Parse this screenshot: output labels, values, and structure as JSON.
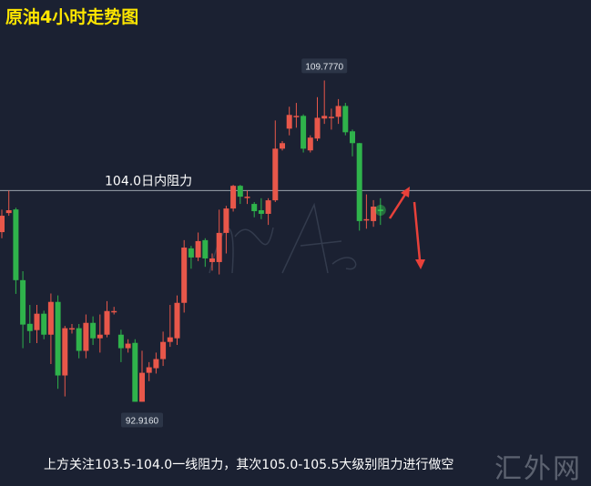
{
  "title": "原油4小时走势图",
  "footnote": "上方关注103.5-104.0一线阻力，其次105.0-105.5大级别阻力进行做空",
  "watermark": "汇外网",
  "colors": {
    "background": "#1b2132",
    "up": "#e8574a",
    "down": "#2fb34b",
    "title": "#ffe600",
    "level_line": "#9aa3ad",
    "arrow": "#e8413a"
  },
  "chart_data": {
    "type": "candlestick",
    "title": "原油4小时走势图",
    "ylim": [
      88.5,
      114.0
    ],
    "grid": false,
    "annotations": {
      "high_label": {
        "text": "109.7770",
        "value": 109.777,
        "candle": 46
      },
      "low_label": {
        "text": "92.9160",
        "value": 92.916,
        "candle": 20
      },
      "level": {
        "text": "104.0日内阻力",
        "value": 104.0
      }
    },
    "arrows": [
      "up",
      "down"
    ],
    "candles": [
      [
        101.82,
        103.0,
        101.5,
        102.68
      ],
      [
        102.82,
        104.0,
        102.68,
        102.97
      ],
      [
        103.01,
        103.1,
        98.58,
        99.3
      ],
      [
        99.3,
        99.77,
        95.73,
        96.97
      ],
      [
        97.01,
        98.0,
        96.0,
        96.63
      ],
      [
        96.68,
        98.0,
        96.0,
        97.54
      ],
      [
        97.54,
        97.7,
        96.2,
        96.44
      ],
      [
        96.44,
        98.6,
        94.9,
        98.16
      ],
      [
        98.16,
        98.5,
        93.6,
        94.3
      ],
      [
        94.3,
        96.9,
        93.2,
        96.78
      ],
      [
        96.73,
        97.0,
        96.5,
        96.78
      ],
      [
        96.78,
        97.0,
        95.2,
        95.59
      ],
      [
        95.59,
        97.5,
        95.2,
        97.06
      ],
      [
        97.06,
        97.4,
        95.9,
        96.25
      ],
      [
        96.25,
        97.5,
        95.5,
        96.44
      ],
      [
        96.44,
        98.2,
        96.3,
        97.68
      ],
      [
        97.68,
        97.9,
        97.5,
        97.68
      ],
      [
        96.44,
        96.7,
        95.0,
        95.73
      ],
      [
        95.73,
        96.2,
        95.5,
        95.97
      ],
      [
        96.01,
        96.2,
        92.92,
        92.92
      ],
      [
        92.92,
        95.6,
        92.916,
        94.44
      ],
      [
        94.44,
        95.0,
        94.0,
        94.73
      ],
      [
        94.68,
        95.5,
        94.4,
        95.16
      ],
      [
        95.16,
        96.6,
        94.8,
        96.06
      ],
      [
        96.06,
        98.0,
        95.8,
        96.3
      ],
      [
        96.25,
        98.5,
        95.9,
        98.11
      ],
      [
        98.11,
        101.4,
        97.6,
        101.01
      ],
      [
        100.97,
        101.1,
        99.9,
        100.49
      ],
      [
        100.49,
        101.8,
        100.3,
        101.35
      ],
      [
        101.4,
        101.5,
        100.0,
        100.44
      ],
      [
        100.25,
        100.7,
        99.8,
        100.44
      ],
      [
        100.25,
        103.0,
        99.6,
        101.78
      ],
      [
        101.78,
        103.2,
        100.7,
        103.06
      ],
      [
        103.06,
        104.3,
        102.9,
        104.25
      ],
      [
        104.25,
        104.3,
        103.3,
        103.68
      ],
      [
        103.68,
        104.0,
        103.3,
        103.68
      ],
      [
        103.3,
        103.4,
        102.6,
        102.92
      ],
      [
        102.97,
        103.6,
        102.5,
        102.78
      ],
      [
        102.78,
        103.6,
        102.2,
        103.49
      ],
      [
        103.49,
        107.68,
        103.4,
        106.2
      ],
      [
        106.2,
        106.6,
        106.1,
        106.49
      ],
      [
        107.25,
        108.4,
        106.9,
        107.97
      ],
      [
        107.92,
        108.6,
        107.3,
        107.92
      ],
      [
        107.92,
        108.0,
        106.0,
        106.2
      ],
      [
        106.11,
        106.9,
        106.0,
        106.78
      ],
      [
        106.73,
        108.9,
        106.6,
        107.82
      ],
      [
        107.78,
        109.777,
        107.5,
        107.92
      ],
      [
        107.87,
        108.3,
        107.2,
        107.87
      ],
      [
        107.87,
        108.8,
        107.5,
        108.44
      ],
      [
        108.44,
        108.6,
        106.9,
        107.06
      ],
      [
        107.11,
        107.2,
        105.8,
        106.49
      ],
      [
        106.49,
        106.5,
        101.9,
        102.4
      ],
      [
        102.44,
        103.8,
        102.0,
        102.5
      ],
      [
        102.4,
        103.5,
        102.1,
        103.16
      ],
      [
        103.0,
        103.6,
        102.2,
        102.97
      ]
    ]
  }
}
